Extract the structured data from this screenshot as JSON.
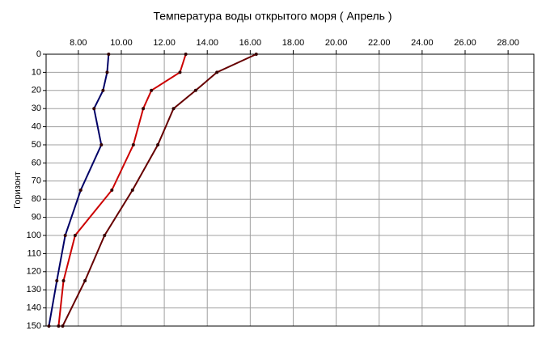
{
  "chart_data": {
    "type": "line",
    "title": "Температура воды открытого моря     ( Апрель )",
    "y_label": "Горизонт",
    "y": [
      0,
      10,
      20,
      30,
      50,
      75,
      100,
      125,
      150
    ],
    "series": [
      {
        "color": "#000066",
        "values": [
          9.41,
          9.34,
          9.15,
          8.73,
          9.07,
          8.11,
          7.39,
          7.0,
          6.63
        ]
      },
      {
        "color": "#cc0000",
        "values": [
          13.0,
          12.73,
          11.4,
          11.02,
          10.56,
          9.56,
          7.85,
          7.31,
          7.08
        ]
      },
      {
        "color": "#660000",
        "values": [
          16.28,
          14.45,
          13.46,
          12.43,
          11.7,
          10.52,
          9.22,
          8.31,
          7.27
        ]
      }
    ],
    "xlim": [
      6.5,
      29.2
    ],
    "xticks": [
      {
        "value": 8,
        "label": "8.00"
      },
      {
        "value": 10,
        "label": "10.00"
      },
      {
        "value": 12,
        "label": "12.00"
      },
      {
        "value": 14,
        "label": "14.00"
      },
      {
        "value": 16,
        "label": "16.00"
      },
      {
        "value": 18,
        "label": "18.00"
      },
      {
        "value": 20,
        "label": "20.00"
      },
      {
        "value": 22,
        "label": "22.00"
      },
      {
        "value": 24,
        "label": "24.00"
      },
      {
        "value": 26,
        "label": "26.00"
      },
      {
        "value": 28,
        "label": "28.00"
      }
    ],
    "ylim": [
      0,
      150
    ],
    "yticks": [
      0,
      10,
      20,
      30,
      40,
      50,
      60,
      70,
      80,
      90,
      100,
      110,
      120,
      130,
      140,
      150
    ],
    "y_inverted": true,
    "grid": true
  }
}
